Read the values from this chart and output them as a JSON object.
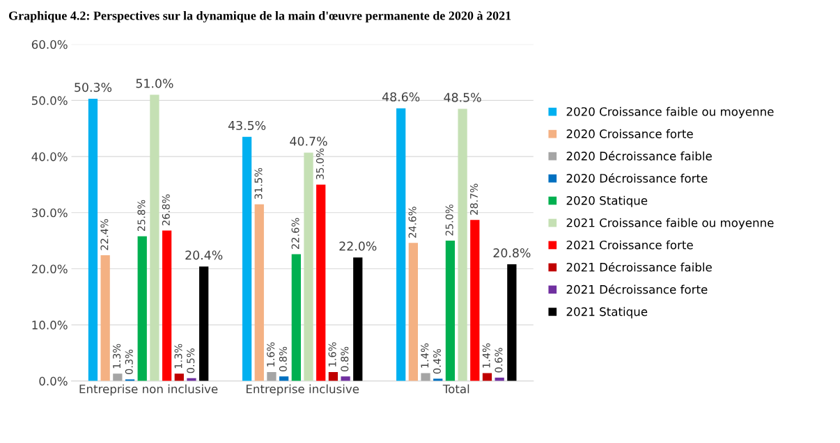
{
  "chart_data": {
    "type": "bar",
    "title": "Graphique 4.2: Perspectives sur la dynamique de la main d'œuvre permanente de 2020 à 2021",
    "categories": [
      "Entreprise non inclusive",
      "Entreprise inclusive",
      "Total"
    ],
    "series": [
      {
        "name": "2020 Croissance faible ou moyenne",
        "color": "#00b0f0",
        "values": [
          50.3,
          43.5,
          48.6
        ],
        "value_labels": [
          "50.3%",
          "43.5%",
          "48.6%"
        ]
      },
      {
        "name": "2020 Croissance forte",
        "color": "#f4b183",
        "values": [
          22.4,
          31.5,
          24.6
        ],
        "value_labels": [
          "22.4%",
          "31.5%",
          "24.6%"
        ]
      },
      {
        "name": "2020 Décroissance faible",
        "color": "#a5a5a5",
        "values": [
          1.3,
          1.6,
          1.4
        ],
        "value_labels": [
          "1.3%",
          "1.6%",
          "1.4%"
        ]
      },
      {
        "name": "2020 Décroissance forte",
        "color": "#0070c0",
        "values": [
          0.3,
          0.8,
          0.4
        ],
        "value_labels": [
          "0.3%",
          "0.8%",
          "0.4%"
        ]
      },
      {
        "name": "2020 Statique",
        "color": "#00b050",
        "values": [
          25.8,
          22.6,
          25.0
        ],
        "value_labels": [
          "25.8%",
          "22.6%",
          "25.0%"
        ]
      },
      {
        "name": "2021 Croissance faible ou moyenne",
        "color": "#c5e0b4",
        "values": [
          51.0,
          40.7,
          48.5
        ],
        "value_labels": [
          "51.0%",
          "40.7%",
          "48.5%"
        ]
      },
      {
        "name": "2021 Croissance forte",
        "color": "#ff0000",
        "values": [
          26.8,
          35.0,
          28.7
        ],
        "value_labels": [
          "26.8%",
          "35.0%",
          "28.7%"
        ]
      },
      {
        "name": "2021 Décroissance faible",
        "color": "#c00000",
        "values": [
          1.3,
          1.6,
          1.4
        ],
        "value_labels": [
          "1.3%",
          "1.6%",
          "1.4%"
        ]
      },
      {
        "name": "2021 Décroissance forte",
        "color": "#7030a0",
        "values": [
          0.5,
          0.8,
          0.6
        ],
        "value_labels": [
          "0.5%",
          "0.8%",
          "0.6%"
        ]
      },
      {
        "name": "2021 Statique",
        "color": "#000000",
        "values": [
          20.4,
          22.0,
          20.8
        ],
        "value_labels": [
          "20.4%",
          "22.0%",
          "20.8%"
        ]
      }
    ],
    "ylim": [
      0,
      60
    ],
    "yticks": [
      {
        "value": 0,
        "label": "0.0%"
      },
      {
        "value": 10,
        "label": "10.0%"
      },
      {
        "value": 20,
        "label": "20.0%"
      },
      {
        "value": 30,
        "label": "30.0%"
      },
      {
        "value": 40,
        "label": "40.0%"
      },
      {
        "value": 50,
        "label": "50.0%"
      },
      {
        "value": 60,
        "label": "60.0%"
      }
    ],
    "grid": "y",
    "legend": "right"
  }
}
